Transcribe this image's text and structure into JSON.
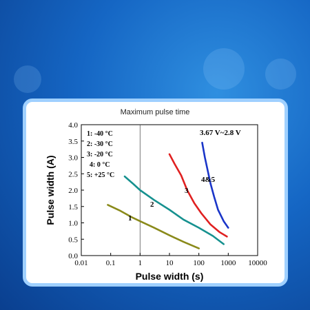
{
  "chart_data": {
    "type": "line",
    "title": "Maximum pulse time",
    "xlabel": "Pulse width (s)",
    "ylabel": "Pulse width (A)",
    "xscale": "log",
    "xlim": [
      0.01,
      10000
    ],
    "ylim": [
      0.0,
      4.0
    ],
    "xticks": [
      "0.01",
      "0.1",
      "1",
      "10",
      "100",
      "1000",
      "10000"
    ],
    "yticks": [
      "0.0",
      "0.5",
      "1.0",
      "1.5",
      "2.0",
      "2.5",
      "3.0",
      "3.5",
      "4.0"
    ],
    "grid": false,
    "legend_entries": [
      "1: -40 °C",
      "2: -30 °C",
      "3: -20 °C",
      "4: 0 °C",
      "5: +25 °C"
    ],
    "annotation": "3.67 V~2.8 V",
    "series": [
      {
        "name": "1",
        "color": "#8a8a1a",
        "x": [
          0.08,
          0.2,
          0.5,
          1,
          3,
          10,
          30,
          100
        ],
        "y": [
          1.55,
          1.38,
          1.18,
          1.05,
          0.85,
          0.62,
          0.42,
          0.22
        ]
      },
      {
        "name": "2",
        "color": "#16918f",
        "x": [
          0.3,
          0.6,
          1,
          3,
          10,
          30,
          100,
          300,
          700
        ],
        "y": [
          2.42,
          2.18,
          2.0,
          1.7,
          1.4,
          1.1,
          0.85,
          0.6,
          0.35
        ]
      },
      {
        "name": "3",
        "color": "#e02020",
        "x": [
          10,
          15,
          25,
          40,
          70,
          120,
          250,
          500,
          900
        ],
        "y": [
          3.1,
          2.8,
          2.45,
          2.0,
          1.6,
          1.3,
          0.95,
          0.72,
          0.58
        ]
      },
      {
        "name": "4&5",
        "color": "#1a35c8",
        "x": [
          130,
          160,
          200,
          250,
          330,
          450,
          700,
          1000
        ],
        "y": [
          3.45,
          3.0,
          2.6,
          2.2,
          1.8,
          1.4,
          1.05,
          0.85
        ]
      }
    ]
  }
}
